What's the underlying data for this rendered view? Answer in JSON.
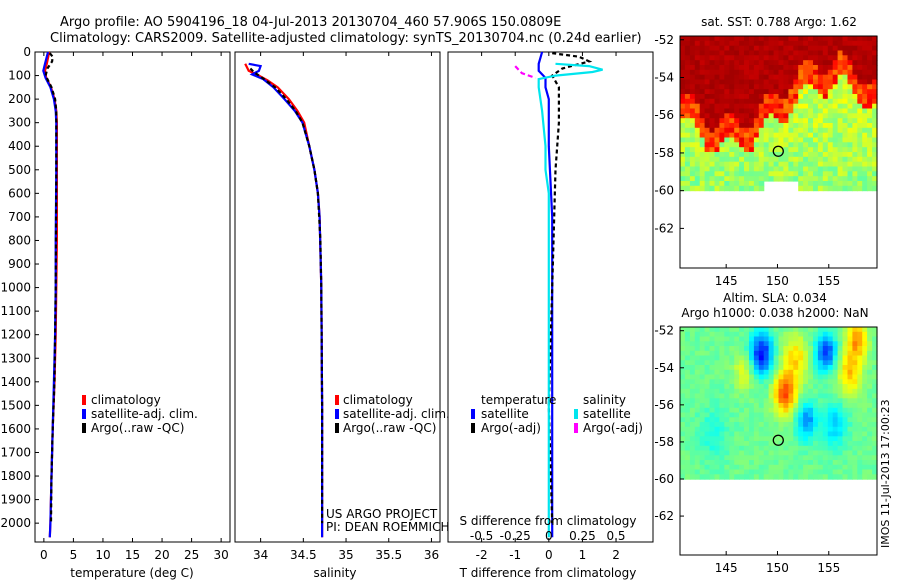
{
  "header": {
    "line1": "Argo profile: AO 5904196_18 04-Jul-2013 20130704_460 57.906S 150.0809E",
    "line2": "Climatology: CARS2009. Satellite-adjusted climatology: synTS_20130704.nc (0.24d earlier)"
  },
  "colors": {
    "climatology": "#ff0000",
    "satellite": "#0000ff",
    "argo": "#000000",
    "salinity_satellite": "#00e5ee",
    "salinity_argo": "#ff00ff"
  },
  "chart_data": [
    {
      "id": "temperature",
      "type": "line",
      "xlabel": "temperature (deg C)",
      "ylabel": "",
      "xlim": [
        -1.5,
        31.5
      ],
      "ylim": [
        2080,
        0
      ],
      "xticks": [
        0,
        5,
        10,
        15,
        20,
        25,
        30
      ],
      "yticks": [
        0,
        100,
        200,
        300,
        400,
        500,
        600,
        700,
        800,
        900,
        1000,
        1100,
        1200,
        1300,
        1400,
        1500,
        1600,
        1700,
        1800,
        1900,
        2000
      ],
      "legend": {
        "position": "lower-center",
        "entries": [
          "climatology",
          "satellite-adj. clim.",
          "Argo(..raw -QC)"
        ]
      },
      "series": [
        {
          "name": "climatology",
          "color": "#ff0000",
          "dash": "",
          "points": [
            [
              0.9,
              0
            ],
            [
              0.5,
              50
            ],
            [
              0.2,
              80
            ],
            [
              0.4,
              110
            ],
            [
              1.2,
              150
            ],
            [
              1.8,
              200
            ],
            [
              2.1,
              250
            ],
            [
              2.2,
              300
            ],
            [
              2.2,
              500
            ],
            [
              2.2,
              800
            ],
            [
              2.1,
              1000
            ],
            [
              2.0,
              1200
            ],
            [
              1.8,
              1400
            ],
            [
              1.5,
              1600
            ],
            [
              1.3,
              1800
            ],
            [
              1.1,
              2000
            ],
            [
              1.0,
              2060
            ]
          ]
        },
        {
          "name": "satellite-adj. clim.",
          "color": "#0000ff",
          "dash": "",
          "points": [
            [
              0.7,
              0
            ],
            [
              0.2,
              50
            ],
            [
              -0.1,
              80
            ],
            [
              0.3,
              110
            ],
            [
              1.1,
              150
            ],
            [
              1.7,
              200
            ],
            [
              2.0,
              250
            ],
            [
              2.1,
              300
            ],
            [
              2.1,
              500
            ],
            [
              2.0,
              800
            ],
            [
              2.0,
              1000
            ],
            [
              1.9,
              1200
            ],
            [
              1.7,
              1400
            ],
            [
              1.5,
              1600
            ],
            [
              1.3,
              1800
            ],
            [
              1.1,
              2000
            ],
            [
              1.0,
              2060
            ]
          ]
        },
        {
          "name": "Argo(..raw -QC)",
          "color": "#000000",
          "dash": "4 3",
          "points": [
            [
              1.0,
              5
            ],
            [
              1.5,
              20
            ],
            [
              1.4,
              40
            ],
            [
              0.6,
              70
            ],
            [
              0.3,
              100
            ],
            [
              1.3,
              150
            ],
            [
              1.9,
              200
            ],
            [
              2.1,
              250
            ],
            [
              2.1,
              500
            ],
            [
              2.0,
              1000
            ],
            [
              1.8,
              1400
            ],
            [
              1.5,
              1600
            ],
            [
              1.3,
              1800
            ],
            [
              1.2,
              2000
            ]
          ]
        }
      ]
    },
    {
      "id": "salinity",
      "type": "line",
      "xlabel": "salinity",
      "ylabel": "",
      "xlim": [
        33.7,
        36.1
      ],
      "ylim": [
        2080,
        0
      ],
      "xticks": [
        34,
        34.5,
        35,
        35.5,
        36
      ],
      "legend": {
        "position": "lower-center",
        "entries": [
          "climatology",
          "satellite-adj. clim.",
          "Argo(..raw -QC)"
        ]
      },
      "annotation": [
        "US ARGO PROJECT",
        "PI: DEAN ROEMMICH"
      ],
      "series": [
        {
          "name": "climatology",
          "color": "#ff0000",
          "dash": "",
          "points": [
            [
              33.82,
              50
            ],
            [
              33.86,
              80
            ],
            [
              33.98,
              100
            ],
            [
              34.08,
              120
            ],
            [
              34.2,
              150
            ],
            [
              34.33,
              200
            ],
            [
              34.43,
              250
            ],
            [
              34.51,
              300
            ],
            [
              34.57,
              400
            ],
            [
              34.63,
              500
            ],
            [
              34.67,
              600
            ],
            [
              34.69,
              700
            ],
            [
              34.71,
              1000
            ],
            [
              34.72,
              1500
            ],
            [
              34.72,
              2000
            ],
            [
              34.72,
              2060
            ]
          ]
        },
        {
          "name": "satellite-adj. clim.",
          "color": "#0000ff",
          "dash": "",
          "points": [
            [
              33.86,
              50
            ],
            [
              34.0,
              60
            ],
            [
              33.98,
              80
            ],
            [
              33.9,
              95
            ],
            [
              34.03,
              115
            ],
            [
              34.15,
              150
            ],
            [
              34.28,
              200
            ],
            [
              34.4,
              250
            ],
            [
              34.49,
              300
            ],
            [
              34.57,
              400
            ],
            [
              34.63,
              500
            ],
            [
              34.67,
              600
            ],
            [
              34.69,
              700
            ],
            [
              34.71,
              1000
            ],
            [
              34.72,
              1500
            ],
            [
              34.72,
              2000
            ],
            [
              34.72,
              2060
            ]
          ]
        },
        {
          "name": "Argo(..raw -QC)",
          "color": "#000000",
          "dash": "4 3",
          "points": [
            [
              33.88,
              70
            ],
            [
              33.92,
              85
            ],
            [
              34.02,
              110
            ],
            [
              34.17,
              150
            ],
            [
              34.3,
              200
            ],
            [
              34.41,
              250
            ],
            [
              34.49,
              300
            ],
            [
              34.57,
              400
            ],
            [
              34.63,
              500
            ],
            [
              34.67,
              600
            ],
            [
              34.7,
              800
            ],
            [
              34.71,
              1000
            ],
            [
              34.72,
              1500
            ],
            [
              34.72,
              2000
            ]
          ]
        }
      ]
    },
    {
      "id": "difference",
      "type": "line",
      "xlabel": "T difference from climatology",
      "title_bottom": "S difference from climatology",
      "xlim": [
        -3,
        3.1
      ],
      "ylim": [
        2080,
        0
      ],
      "xticks": [
        -2,
        -1,
        0,
        1,
        2
      ],
      "sticks": [
        {
          "label": "-0.5",
          "x": -2.0
        },
        {
          "label": "-0.25",
          "x": -1.0
        },
        {
          "label": "0",
          "x": 0.0
        },
        {
          "label": "0.25",
          "x": 1.0
        },
        {
          "label": "0.5",
          "x": 2.0
        }
      ],
      "legend": {
        "position": "lower-center",
        "temperature_title": "temperature",
        "salinity_title": "salinity",
        "entries": [
          "satellite",
          "Argo(-adj)",
          "satellite",
          "Argo(-adj)"
        ]
      },
      "series": [
        {
          "name": "T satellite",
          "color": "#0000ff",
          "dash": "",
          "points": [
            [
              -0.2,
              0
            ],
            [
              -0.3,
              50
            ],
            [
              -0.3,
              80
            ],
            [
              -0.1,
              110
            ],
            [
              -0.1,
              150
            ],
            [
              0.0,
              200
            ],
            [
              0.0,
              400
            ],
            [
              0.1,
              700
            ],
            [
              0.1,
              1000
            ],
            [
              0.1,
              1500
            ],
            [
              0.1,
              2000
            ],
            [
              0.1,
              2060
            ]
          ]
        },
        {
          "name": "T Argo(-adj)",
          "color": "#000000",
          "dash": "4 3",
          "points": [
            [
              0.1,
              5
            ],
            [
              0.9,
              20
            ],
            [
              1.2,
              40
            ],
            [
              0.4,
              70
            ],
            [
              0.1,
              100
            ],
            [
              0.3,
              150
            ],
            [
              0.3,
              300
            ],
            [
              0.2,
              500
            ],
            [
              0.1,
              1000
            ],
            [
              0.0,
              1500
            ],
            [
              0.1,
              2000
            ]
          ]
        },
        {
          "name": "S satellite",
          "color": "#00e5ee",
          "dash": "",
          "points": [
            [
              0.2,
              50
            ],
            [
              1.2,
              60
            ],
            [
              1.6,
              75
            ],
            [
              1.3,
              85
            ],
            [
              0.2,
              100
            ],
            [
              -0.3,
              115
            ],
            [
              -0.3,
              150
            ],
            [
              -0.2,
              250
            ],
            [
              -0.1,
              400
            ],
            [
              -0.1,
              500
            ],
            [
              0.0,
              600
            ],
            [
              0.0,
              1000
            ],
            [
              0.0,
              2000
            ],
            [
              0.0,
              2060
            ]
          ]
        },
        {
          "name": "S Argo(-adj)",
          "color": "#ff00ff",
          "dash": "5 3",
          "points": [
            [
              -1.0,
              60
            ],
            [
              -0.8,
              90
            ],
            [
              -0.4,
              110
            ]
          ]
        }
      ]
    },
    {
      "id": "sst_map",
      "type": "heatmap",
      "title": "sat. SST: 0.788  Argo: 1.62",
      "xlim": [
        140.5,
        159.7
      ],
      "ylim": [
        -64.1,
        -51.8
      ],
      "xticks": [
        145,
        150,
        155
      ],
      "yticks": [
        -52,
        -54,
        -56,
        -58,
        -60,
        -62
      ],
      "marker": {
        "lon": 150.08,
        "lat": -57.91
      }
    },
    {
      "id": "sla_map",
      "type": "heatmap",
      "title_line1": "Altim. SLA: 0.034",
      "title_line2": "Argo h1000: 0.038 h2000: NaN",
      "xlim": [
        140.5,
        159.7
      ],
      "ylim": [
        -64.1,
        -51.8
      ],
      "xticks": [
        145,
        150,
        155
      ],
      "yticks": [
        -52,
        -54,
        -56,
        -58,
        -60,
        -62
      ],
      "marker": {
        "lon": 150.08,
        "lat": -57.91
      }
    }
  ],
  "footer": {
    "stamp": "IMOS 11-Jul-2013 17:00:23"
  }
}
